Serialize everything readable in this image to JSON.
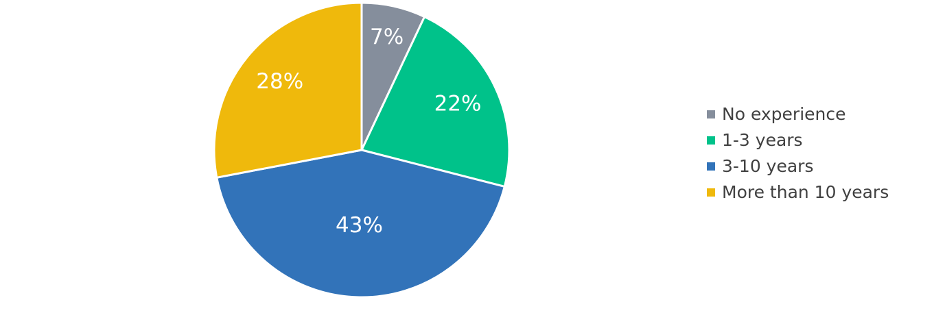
{
  "chart_data": {
    "type": "pie",
    "categories": [
      "No experience",
      "1-3 years",
      "3-10 years",
      "More than 10 years"
    ],
    "values": [
      7,
      22,
      43,
      28
    ],
    "value_labels": [
      "7%",
      "22%",
      "43%",
      "28%"
    ],
    "colors": [
      "#858e9c",
      "#00c28a",
      "#3273b9",
      "#efb90c"
    ],
    "legend": "right"
  }
}
